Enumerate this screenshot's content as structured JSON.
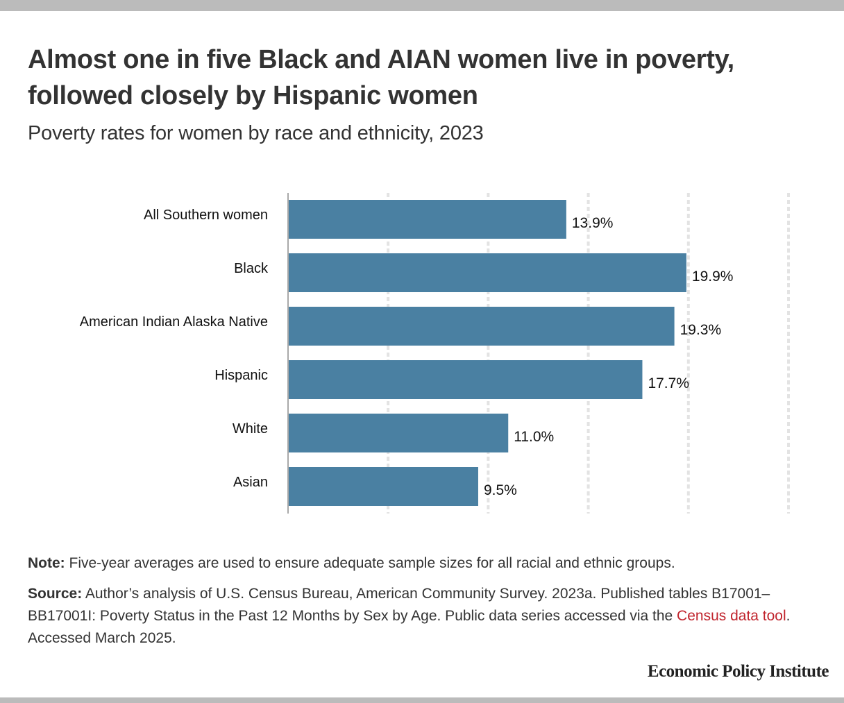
{
  "header": {
    "title": "Almost one in five Black and AIAN women live in poverty, followed closely by Hispanic women",
    "subtitle": "Poverty rates for women by race and ethnicity, 2023"
  },
  "chart_data": {
    "type": "bar",
    "orientation": "horizontal",
    "title": "Almost one in five Black and AIAN women live in poverty, followed closely by Hispanic women",
    "subtitle": "Poverty rates for women by race and ethnicity, 2023",
    "categories": [
      "All Southern women",
      "Black",
      "American Indian Alaska Native",
      "Hispanic",
      "White",
      "Asian"
    ],
    "values": [
      13.9,
      19.9,
      19.3,
      17.7,
      11.0,
      9.5
    ],
    "value_labels": [
      "13.9%",
      "19.9%",
      "19.3%",
      "17.7%",
      "11.0%",
      "9.5%"
    ],
    "xlabel": "",
    "ylabel": "",
    "xlim": [
      0,
      25
    ],
    "gridlines": [
      5,
      10,
      15,
      20,
      25
    ],
    "grid": true,
    "tick_labels_shown": false,
    "legend": "none",
    "bar_color": "#4a80a2"
  },
  "footer": {
    "note_label": "Note:",
    "note_text": " Five-year averages are used to ensure adequate sample sizes for all racial and ethnic groups.",
    "source_label": "Source:",
    "source_text_1": " Author’s analysis of U.S. Census Bureau, American Community Survey. 2023a. Published tables B17001–BB17001I: Poverty Status in the Past 12 Months by Sex by Age. Public data series accessed via the ",
    "source_link": "Census data tool",
    "source_text_2": ". Accessed March 2025.",
    "brand": "Economic Policy Institute"
  },
  "colors": {
    "bar": "#4a80a2",
    "link": "#c0232c",
    "frame": "#bbbbbb"
  }
}
